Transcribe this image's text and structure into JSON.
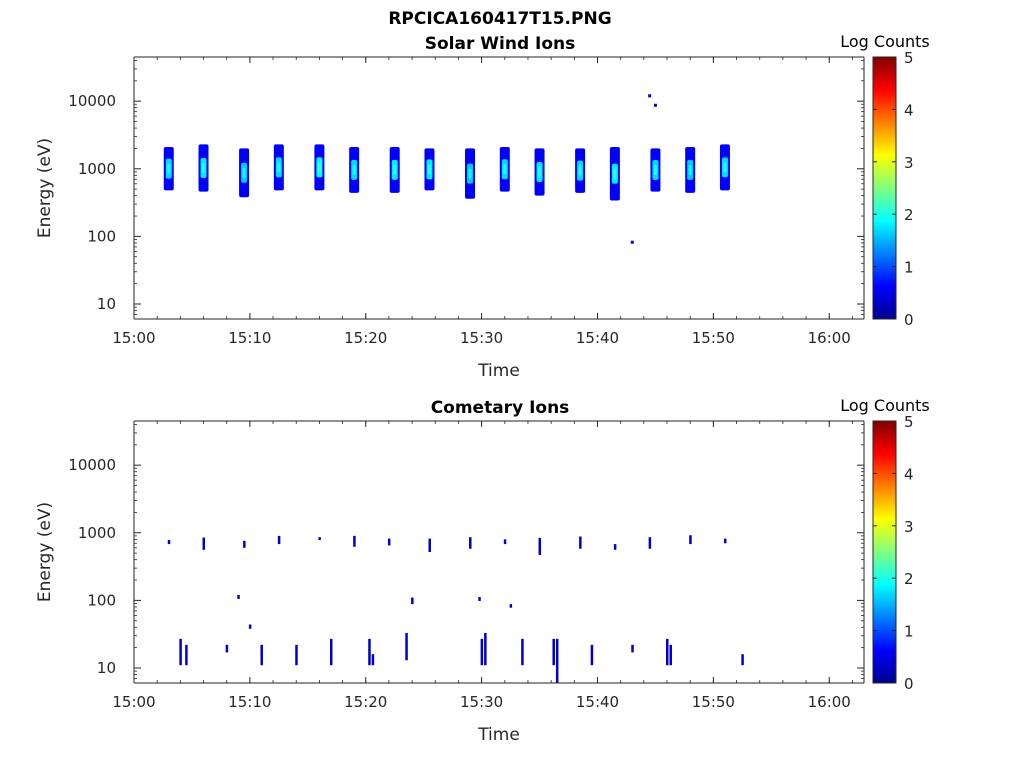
{
  "figure": {
    "title": "RPCICA160417T15.PNG"
  },
  "chart_data": [
    {
      "type": "heatmap",
      "title": "Solar Wind Ions",
      "xlabel": "Time",
      "ylabel": "Energy (eV)",
      "y_scale": "log",
      "ylim": [
        6,
        45000
      ],
      "xlim": [
        "15:00",
        "16:03"
      ],
      "x_ticks": [
        "15:00",
        "15:10",
        "15:20",
        "15:30",
        "15:40",
        "15:50",
        "16:00"
      ],
      "y_ticks": [
        "10",
        "100",
        "1000",
        "10000"
      ],
      "colorbar": {
        "label": "Log Counts",
        "range": [
          0,
          5
        ],
        "ticks": [
          "0",
          "1",
          "2",
          "3",
          "4",
          "5"
        ],
        "colormap": "jet"
      },
      "grid": false,
      "bursts": [
        {
          "time": "15:03",
          "energy_low": 480,
          "energy_high": 2100,
          "peak_log_counts": 2.0
        },
        {
          "time": "15:06",
          "energy_low": 460,
          "energy_high": 2300,
          "peak_log_counts": 2.1
        },
        {
          "time": "15:09.5",
          "energy_low": 380,
          "energy_high": 2000,
          "peak_log_counts": 1.9
        },
        {
          "time": "15:12.5",
          "energy_low": 480,
          "energy_high": 2300,
          "peak_log_counts": 2.0
        },
        {
          "time": "15:16",
          "energy_low": 480,
          "energy_high": 2300,
          "peak_log_counts": 2.2
        },
        {
          "time": "15:19",
          "energy_low": 440,
          "energy_high": 2100,
          "peak_log_counts": 2.0
        },
        {
          "time": "15:22.5",
          "energy_low": 440,
          "energy_high": 2100,
          "peak_log_counts": 2.1
        },
        {
          "time": "15:25.5",
          "energy_low": 480,
          "energy_high": 2000,
          "peak_log_counts": 2.1
        },
        {
          "time": "15:29",
          "energy_low": 360,
          "energy_high": 2000,
          "peak_log_counts": 1.9
        },
        {
          "time": "15:32",
          "energy_low": 460,
          "energy_high": 2100,
          "peak_log_counts": 2.0
        },
        {
          "time": "15:35",
          "energy_low": 400,
          "energy_high": 2000,
          "peak_log_counts": 2.1
        },
        {
          "time": "15:38.5",
          "energy_low": 440,
          "energy_high": 2000,
          "peak_log_counts": 2.0
        },
        {
          "time": "15:41.5",
          "energy_low": 340,
          "energy_high": 2100,
          "peak_log_counts": 2.1
        },
        {
          "time": "15:45",
          "energy_low": 460,
          "energy_high": 2000,
          "peak_log_counts": 2.0
        },
        {
          "time": "15:48",
          "energy_low": 440,
          "energy_high": 2100,
          "peak_log_counts": 1.9
        },
        {
          "time": "15:51",
          "energy_low": 480,
          "energy_high": 2300,
          "peak_log_counts": 2.0
        }
      ],
      "isolated_points": [
        {
          "time": "15:44.5",
          "energy": 12000,
          "log_counts": 0.3
        },
        {
          "time": "15:45",
          "energy": 8700,
          "log_counts": 0.3
        },
        {
          "time": "15:43",
          "energy": 82,
          "log_counts": 0.3
        }
      ]
    },
    {
      "type": "heatmap",
      "title": "Cometary Ions",
      "xlabel": "Time",
      "ylabel": "Energy (eV)",
      "y_scale": "log",
      "ylim": [
        6,
        45000
      ],
      "xlim": [
        "15:00",
        "16:03"
      ],
      "x_ticks": [
        "15:00",
        "15:10",
        "15:20",
        "15:30",
        "15:40",
        "15:50",
        "16:00"
      ],
      "y_ticks": [
        "10",
        "100",
        "1000",
        "10000"
      ],
      "colorbar": {
        "label": "Log Counts",
        "range": [
          0,
          5
        ],
        "ticks": [
          "0",
          "1",
          "2",
          "3",
          "4",
          "5"
        ],
        "colormap": "jet"
      },
      "grid": false,
      "features": [
        {
          "time": "15:03",
          "energy_low": 680,
          "energy_high": 780
        },
        {
          "time": "15:06",
          "energy_low": 560,
          "energy_high": 850
        },
        {
          "time": "15:09.5",
          "energy_low": 600,
          "energy_high": 760
        },
        {
          "time": "15:12.5",
          "energy_low": 680,
          "energy_high": 900
        },
        {
          "time": "15:16",
          "energy_low": 780,
          "energy_high": 860
        },
        {
          "time": "15:19",
          "energy_low": 620,
          "energy_high": 900
        },
        {
          "time": "15:22",
          "energy_low": 650,
          "energy_high": 820
        },
        {
          "time": "15:25.5",
          "energy_low": 520,
          "energy_high": 820
        },
        {
          "time": "15:29",
          "energy_low": 580,
          "energy_high": 860
        },
        {
          "time": "15:32",
          "energy_low": 680,
          "energy_high": 800
        },
        {
          "time": "15:35",
          "energy_low": 470,
          "energy_high": 840
        },
        {
          "time": "15:38.5",
          "energy_low": 580,
          "energy_high": 880
        },
        {
          "time": "15:41.5",
          "energy_low": 560,
          "energy_high": 680
        },
        {
          "time": "15:44.5",
          "energy_low": 580,
          "energy_high": 860
        },
        {
          "time": "15:48",
          "energy_low": 680,
          "energy_high": 920
        },
        {
          "time": "15:51",
          "energy_low": 700,
          "energy_high": 820
        },
        {
          "time": "15:04",
          "energy_low": 11,
          "energy_high": 27
        },
        {
          "time": "15:04.5",
          "energy_low": 11,
          "energy_high": 22
        },
        {
          "time": "15:08",
          "energy_low": 17,
          "energy_high": 22
        },
        {
          "time": "15:11",
          "energy_low": 11,
          "energy_high": 22
        },
        {
          "time": "15:14",
          "energy_low": 11,
          "energy_high": 22
        },
        {
          "time": "15:17",
          "energy_low": 11,
          "energy_high": 27
        },
        {
          "time": "15:20.3",
          "energy_low": 11,
          "energy_high": 27
        },
        {
          "time": "15:20.6",
          "energy_low": 11,
          "energy_high": 16
        },
        {
          "time": "15:23.5",
          "energy_low": 13,
          "energy_high": 33
        },
        {
          "time": "15:30",
          "energy_low": 11,
          "energy_high": 27
        },
        {
          "time": "15:30.3",
          "energy_low": 11,
          "energy_high": 33
        },
        {
          "time": "15:33.5",
          "energy_low": 11,
          "energy_high": 27
        },
        {
          "time": "15:36.2",
          "energy_low": 11,
          "energy_high": 27
        },
        {
          "time": "15:36.5",
          "energy_low": 6,
          "energy_high": 27
        },
        {
          "time": "15:39.5",
          "energy_low": 11,
          "energy_high": 22
        },
        {
          "time": "15:43",
          "energy_low": 17,
          "energy_high": 22
        },
        {
          "time": "15:46",
          "energy_low": 11,
          "energy_high": 27
        },
        {
          "time": "15:46.3",
          "energy_low": 11,
          "energy_high": 22
        },
        {
          "time": "15:52.5",
          "energy_low": 11,
          "energy_high": 16
        },
        {
          "time": "15:09",
          "energy_low": 105,
          "energy_high": 120
        },
        {
          "time": "15:10",
          "energy_low": 38,
          "energy_high": 44
        },
        {
          "time": "15:24",
          "energy_low": 88,
          "energy_high": 110
        },
        {
          "time": "15:29.8",
          "energy_low": 98,
          "energy_high": 112
        },
        {
          "time": "15:32.5",
          "energy_low": 78,
          "energy_high": 88
        }
      ]
    }
  ]
}
